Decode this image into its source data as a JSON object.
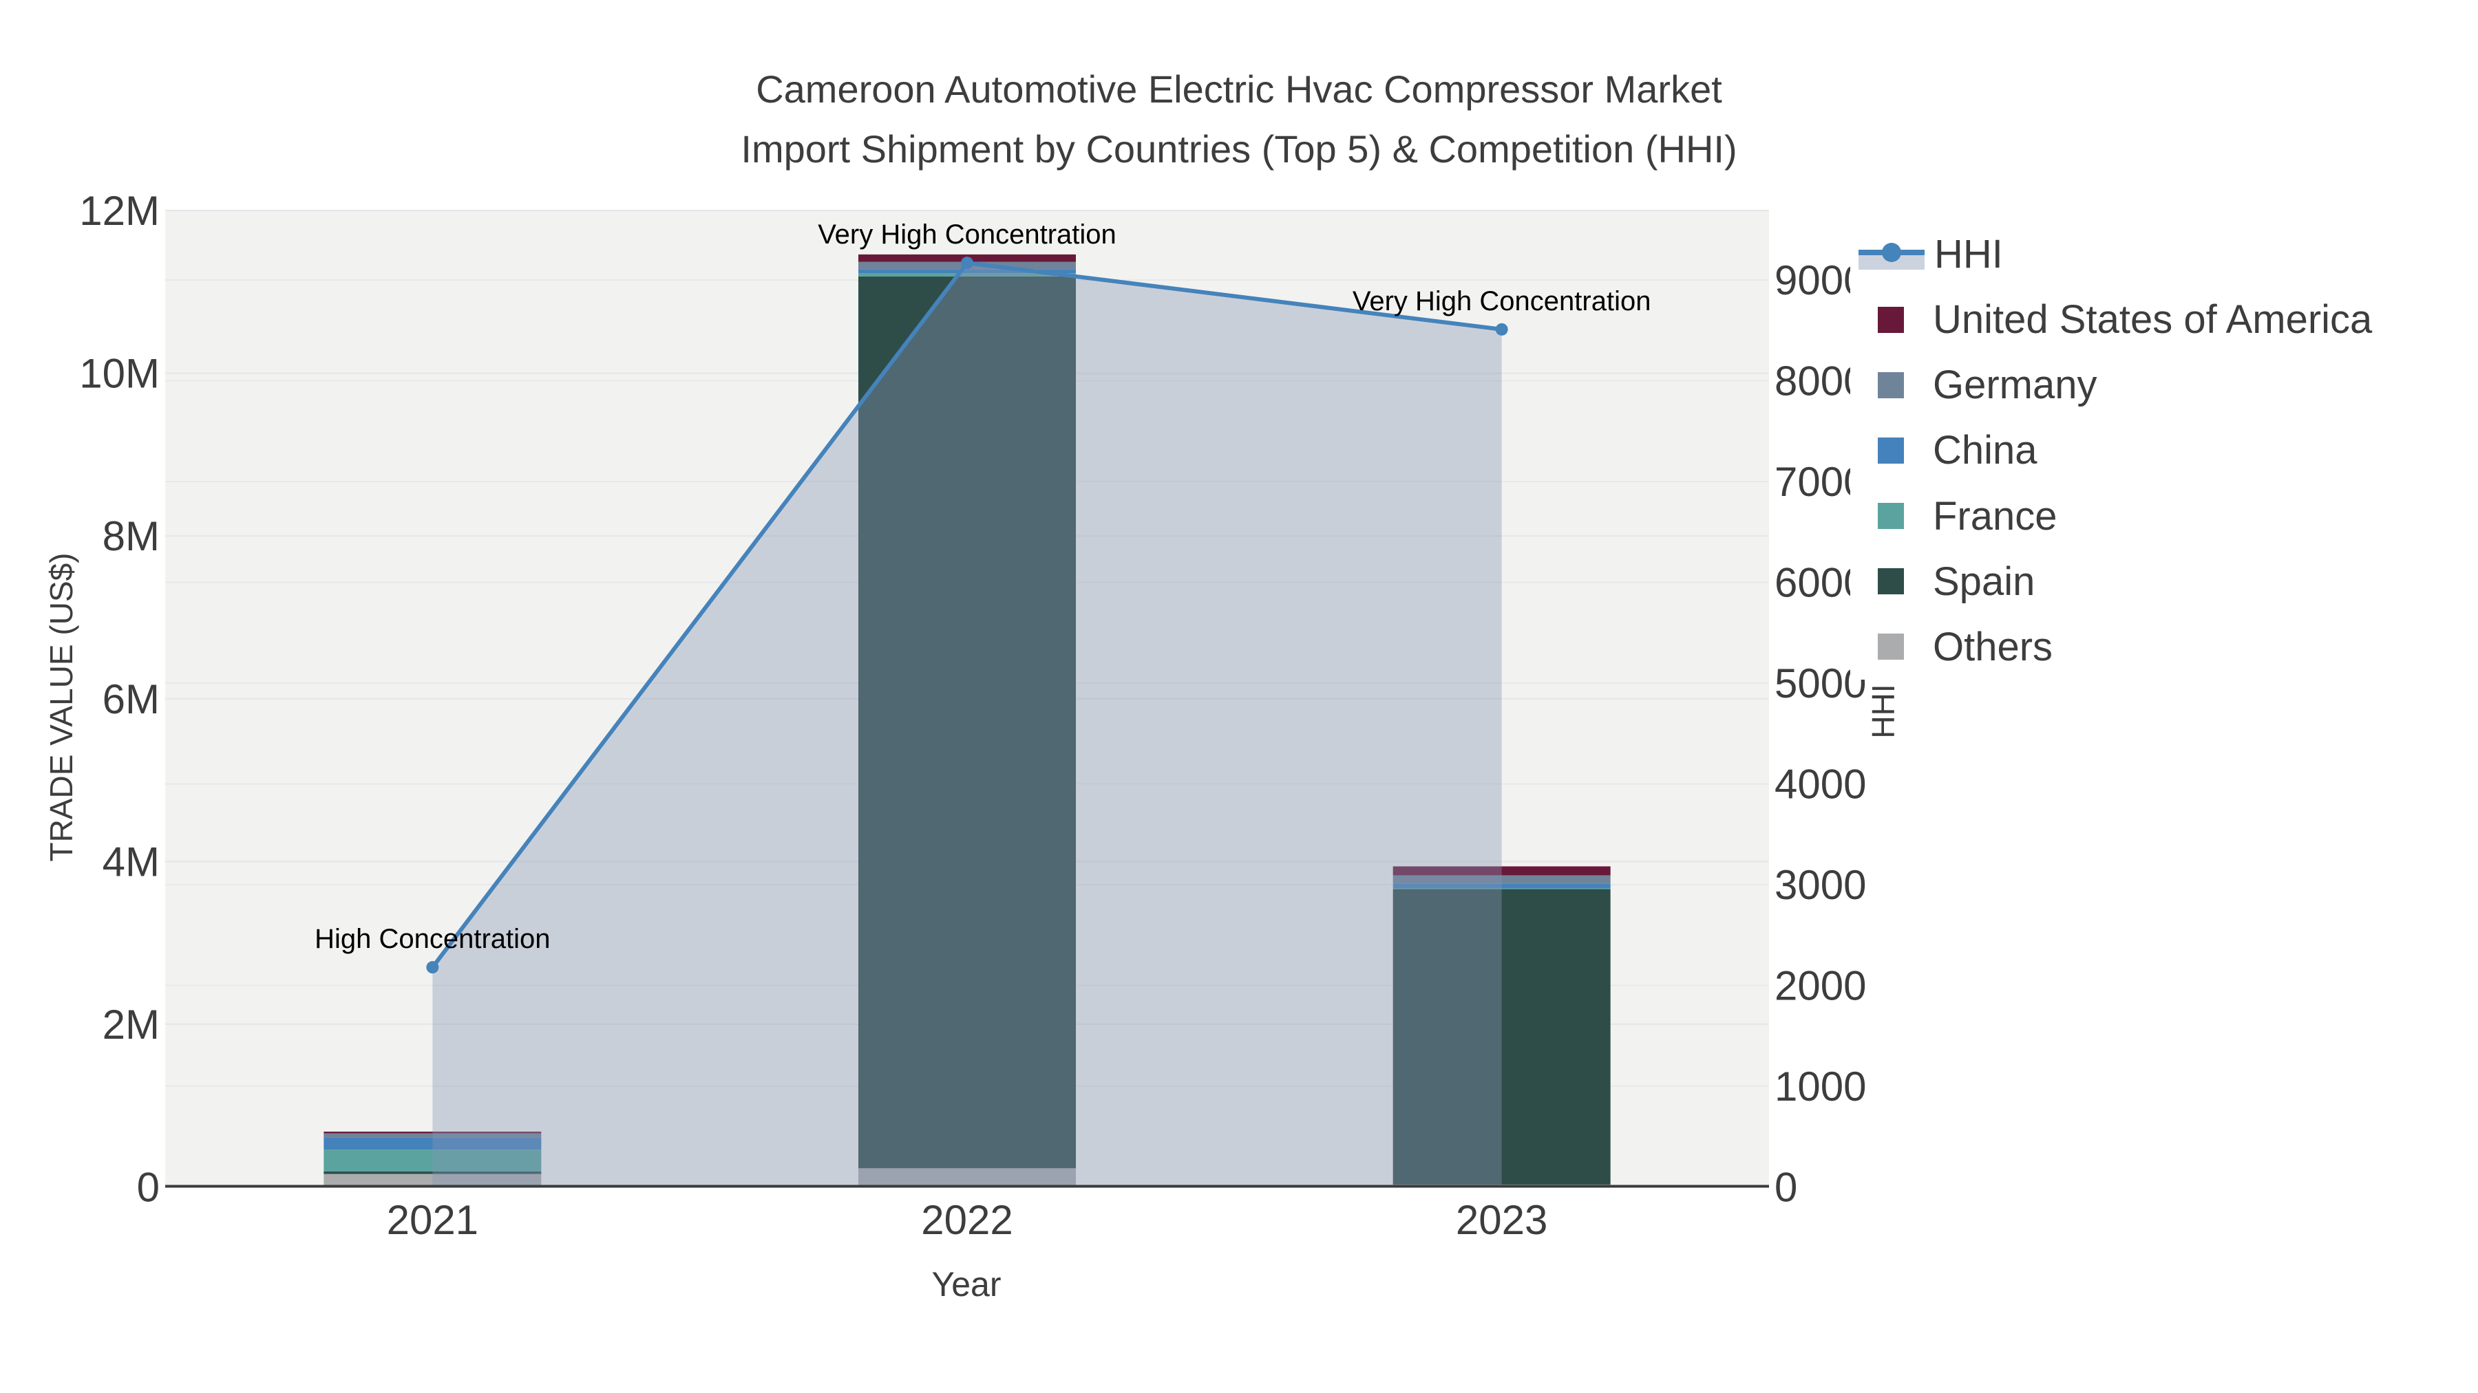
{
  "title": {
    "line1": "Cameroon Automotive Electric Hvac Compressor Market",
    "line2": "Import Shipment by Countries (Top 5) & Competition (HHI)"
  },
  "legend": {
    "entries": [
      {
        "label": "HHI",
        "type": "line",
        "color": "#4583bb"
      },
      {
        "label": "United States of America",
        "type": "swatch",
        "color": "#68193a"
      },
      {
        "label": "Germany",
        "type": "swatch",
        "color": "#708499"
      },
      {
        "label": "China",
        "type": "swatch",
        "color": "#4482bc"
      },
      {
        "label": "France",
        "type": "swatch",
        "color": "#5aa39e"
      },
      {
        "label": "Spain",
        "type": "swatch",
        "color": "#2e4d49"
      },
      {
        "label": "Others",
        "type": "swatch",
        "color": "#aaacae"
      }
    ]
  },
  "chart_data": {
    "type": "bar",
    "subtype": "stacked bars with secondary-axis line",
    "categories": [
      "2021",
      "2022",
      "2023"
    ],
    "bar_value_unit": "US$ millions",
    "series": [
      {
        "name": "Others",
        "color": "#aaacae",
        "values": [
          0.16,
          0.23,
          0.03
        ]
      },
      {
        "name": "Spain",
        "color": "#2e4d49",
        "values": [
          0.03,
          10.96,
          3.63
        ]
      },
      {
        "name": "France",
        "color": "#5aa39e",
        "values": [
          0.27,
          0.04,
          0.01
        ]
      },
      {
        "name": "China",
        "color": "#4482bc",
        "values": [
          0.15,
          0.05,
          0.06
        ]
      },
      {
        "name": "Germany",
        "color": "#708499",
        "values": [
          0.05,
          0.09,
          0.1
        ]
      },
      {
        "name": "United States of America",
        "color": "#68193a",
        "values": [
          0.02,
          0.09,
          0.11
        ]
      }
    ],
    "line_series": {
      "name": "HHI",
      "color": "#4583bb",
      "fill_color": "rgba(133,150,179,0.38)",
      "values": [
        2180,
        9170,
        8510
      ]
    },
    "xlabel": "Year",
    "y_left": {
      "label": "TRADE VALUE (US$)",
      "range_millions": [
        0,
        12
      ],
      "dtick_millions": 2,
      "tick_suffix": "M"
    },
    "y_right": {
      "label": "HHI",
      "range": [
        0,
        9690
      ],
      "dtick": 1000,
      "last_labeled_tick": 9000
    },
    "grid": "on",
    "legend_position": "right",
    "annotations": [
      {
        "category": "2021",
        "text": "High Concentration"
      },
      {
        "category": "2022",
        "text": "Very High Concentration"
      },
      {
        "category": "2023",
        "text": "Very High Concentration"
      }
    ]
  }
}
